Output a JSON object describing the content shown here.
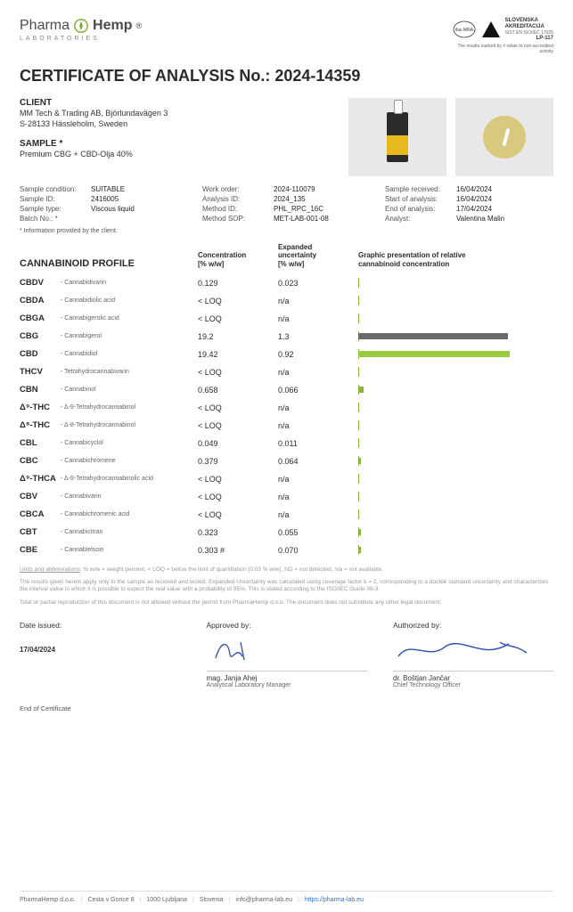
{
  "logo": {
    "brand1": "Pharma",
    "brand2": "Hemp",
    "reg": "®",
    "sub": "LABORATORIES",
    "leaf_color": "#7aa52b"
  },
  "accreditation": {
    "ilac_label": "ilac-MRA",
    "sa_line1": "SLOVENSKA",
    "sa_line2": "AKREDITACIJA",
    "sa_sub": "SIST EN ISO/IEC 17025",
    "lp": "LP-117",
    "note": "The results marked by # relate to non-accredited activity"
  },
  "title_prefix": "CERTIFICATE OF ANALYSIS No.: ",
  "cert_no": "2024-14359",
  "client": {
    "heading": "CLIENT",
    "line1": "MM Tech & Trading AB, Björlundavägen 3",
    "line2": "S-28133 Hässleholm, Sweden"
  },
  "sample": {
    "heading": "SAMPLE *",
    "name": "Premium CBG + CBD-Olja 40%"
  },
  "meta": {
    "left": [
      {
        "label": "Sample condition:",
        "value": "SUITABLE"
      },
      {
        "label": "Sample ID:",
        "value": "2416005"
      },
      {
        "label": "Sample type:",
        "value": "Viscous liquid"
      },
      {
        "label": "Batch No.: *",
        "value": ""
      }
    ],
    "mid": [
      {
        "label": "Work order:",
        "value": "2024-110079"
      },
      {
        "label": "Analysis ID:",
        "value": "2024_135"
      },
      {
        "label": "Method ID:",
        "value": "PHL_RPC_16C"
      },
      {
        "label": "Method SOP:",
        "value": "MET-LAB-001-08"
      }
    ],
    "right": [
      {
        "label": "Sample received:",
        "value": "16/04/2024"
      },
      {
        "label": "Start of analysis:",
        "value": "16/04/2024"
      },
      {
        "label": "End of analysis:",
        "value": "17/04/2024"
      },
      {
        "label": "Analyst:",
        "value": "Valentina Malin"
      }
    ]
  },
  "client_footnote": "* Information provided by the client.",
  "profile": {
    "title": "CANNABINOID PROFILE",
    "col1": "Concentration\n[% w/w]",
    "col2": "Expanded\nuncertainty\n[% w/w]",
    "col3": "Graphic presentation of relative\ncannabinoid concentration",
    "max_value": 25,
    "bar_colors": {
      "default": "#8bb63d",
      "cbg": "#6a6a6a",
      "cbd": "#98cc3e"
    },
    "rows": [
      {
        "abbr": "CBDV",
        "name": "Cannabidivarin",
        "conc": "0.129",
        "unc": "0.023",
        "bar": 0.129,
        "color": "#8bb63d"
      },
      {
        "abbr": "CBDA",
        "name": "Cannabidiolic acid",
        "conc": "< LOQ",
        "unc": "n/a",
        "bar": 0,
        "color": "#8bb63d"
      },
      {
        "abbr": "CBGA",
        "name": "Cannabigerolic acid",
        "conc": "< LOQ",
        "unc": "n/a",
        "bar": 0,
        "color": "#8bb63d"
      },
      {
        "abbr": "CBG",
        "name": "Cannabigerol",
        "conc": "19.2",
        "unc": "1.3",
        "bar": 19.2,
        "color": "#6a6a6a"
      },
      {
        "abbr": "CBD",
        "name": "Cannabidiol",
        "conc": "19.42",
        "unc": "0.92",
        "bar": 19.42,
        "color": "#98cc3e"
      },
      {
        "abbr": "THCV",
        "name": "Tetrahydrocannabivarin",
        "conc": "< LOQ",
        "unc": "n/a",
        "bar": 0,
        "color": "#8bb63d"
      },
      {
        "abbr": "CBN",
        "name": "Cannabinol",
        "conc": "0.658",
        "unc": "0.066",
        "bar": 0.658,
        "color": "#8bb63d"
      },
      {
        "abbr": "Δ⁹-THC",
        "name": "Δ-9-Tetrahydrocannabinol",
        "conc": "< LOQ",
        "unc": "n/a",
        "bar": 0,
        "color": "#8bb63d"
      },
      {
        "abbr": "Δ⁸-THC",
        "name": "Δ-8-Tetrahydrocannabinol",
        "conc": "< LOQ",
        "unc": "n/a",
        "bar": 0,
        "color": "#8bb63d"
      },
      {
        "abbr": "CBL",
        "name": "Cannabicyclol",
        "conc": "0.049",
        "unc": "0.011",
        "bar": 0.049,
        "color": "#8bb63d"
      },
      {
        "abbr": "CBC",
        "name": "Cannabichromene",
        "conc": "0.379",
        "unc": "0.064",
        "bar": 0.379,
        "color": "#8bb63d"
      },
      {
        "abbr": "Δ⁹-THCA",
        "name": "Δ-9-Tetrahydrocannabinolic acid",
        "conc": "< LOQ",
        "unc": "n/a",
        "bar": 0,
        "color": "#8bb63d"
      },
      {
        "abbr": "CBV",
        "name": "Cannabivarin",
        "conc": "< LOQ",
        "unc": "n/a",
        "bar": 0,
        "color": "#8bb63d"
      },
      {
        "abbr": "CBCA",
        "name": "Cannabichromenic acid",
        "conc": "< LOQ",
        "unc": "n/a",
        "bar": 0,
        "color": "#8bb63d"
      },
      {
        "abbr": "CBT",
        "name": "Cannabicitran",
        "conc": "0.323",
        "unc": "0.055",
        "bar": 0.323,
        "color": "#8bb63d"
      },
      {
        "abbr": "CBE",
        "name": "Cannabielsoin",
        "conc": "0.303 #",
        "unc": "0.070",
        "bar": 0.303,
        "color": "#8bb63d"
      }
    ]
  },
  "disclaimers": {
    "units": "Units and abbreviations: % w/w = weight percent, < LOQ = below the limit of quantitation (0.03 % w/w), ND = not detected, n/a = not available.",
    "p1": "The results given herein apply only to the sample as received and tested. Expanded Uncertainty was calculated using coverage factor k = 2, corresponding to a double standard uncertainty and characterizes the interval value in which it is possible to expect the real value with a probability of 95%. This is stated according to the ISO/IEC Guide 98-3.",
    "p2": "Total or partial reproduction of this document is not allowed without the permit from PharmaHemp d.o.o. The document does not substitute any other legal document."
  },
  "signatures": {
    "date_label": "Date issued:",
    "date": "17/04/2024",
    "approved_label": "Approved by:",
    "approved_name": "mag. Janja Ahej",
    "approved_role": "Analytical Laboratory Manager",
    "authorized_label": "Authorized by:",
    "authorized_name": "dr. Boštjan Jančar",
    "authorized_role": "Chief Technology Officer",
    "end": "End of Certificate"
  },
  "footer": {
    "company": "PharmaHemp d.o.o.",
    "addr": "Cesta v Gorice 8",
    "city": "1000 Ljubljana",
    "country": "Slovenia",
    "email": "info@pharma-lab.eu",
    "url": "https://pharma-lab.eu"
  }
}
